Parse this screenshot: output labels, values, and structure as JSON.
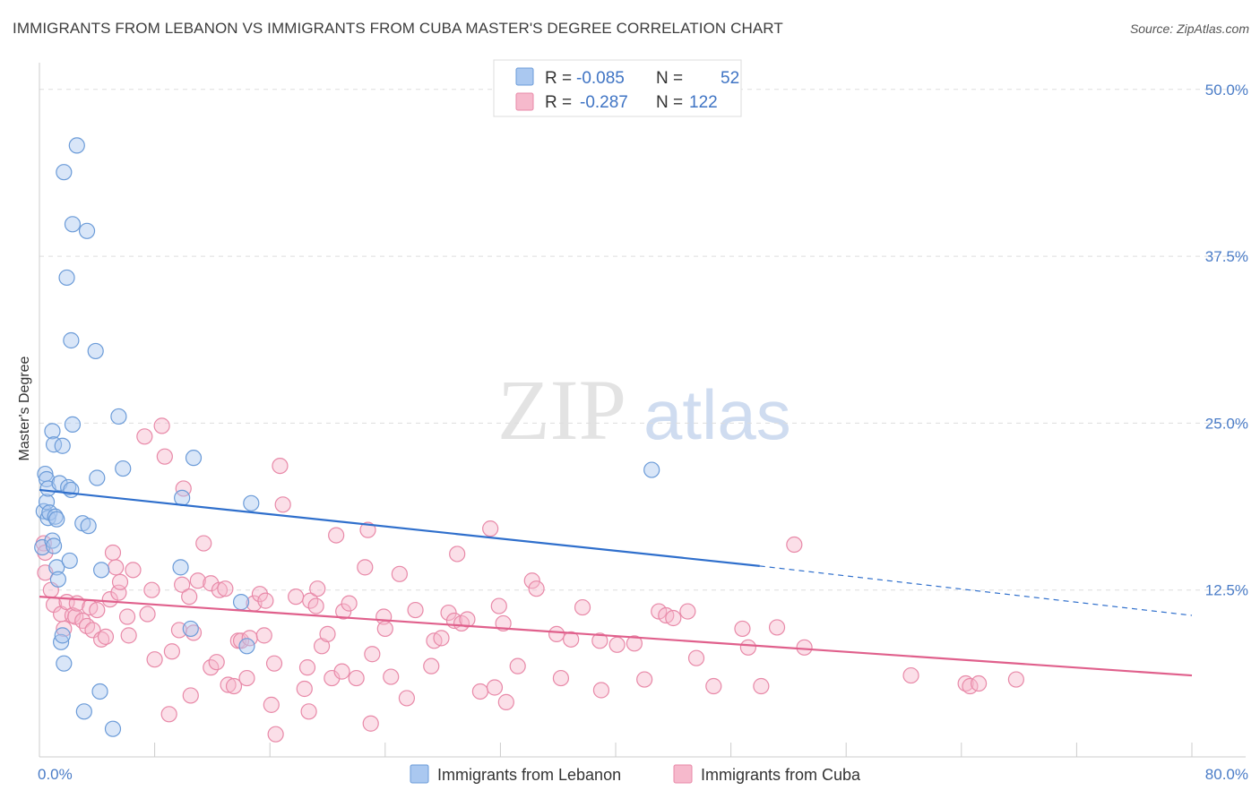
{
  "header": {
    "title": "IMMIGRANTS FROM LEBANON VS IMMIGRANTS FROM CUBA MASTER'S DEGREE CORRELATION CHART",
    "source_label": "Source: ZipAtlas.com"
  },
  "watermark": {
    "zip": "ZIP",
    "atlas": "atlas"
  },
  "legend": {
    "r_label": "R =",
    "n_label": "N =",
    "rows": [
      {
        "series": "Immigrants from Lebanon",
        "r": "-0.085",
        "n": "52"
      },
      {
        "series": "Immigrants from Cuba",
        "r": "-0.287",
        "n": "122"
      }
    ]
  },
  "colors": {
    "lebanon_fill": "#aac8f0",
    "lebanon_stroke": "#6b9bd8",
    "lebanon_line": "#2f6fcc",
    "cuba_fill": "#f6b9cc",
    "cuba_stroke": "#e889a8",
    "cuba_line": "#e0608c",
    "grid": "#dddddd",
    "tick_text": "#4a7cc7"
  },
  "chart_data": {
    "type": "scatter",
    "title": "IMMIGRANTS FROM LEBANON VS IMMIGRANTS FROM CUBA MASTER'S DEGREE CORRELATION CHART",
    "xlabel": "",
    "ylabel": "Master's Degree",
    "xlim": [
      0,
      80
    ],
    "ylim": [
      0,
      52
    ],
    "x_tick_labels": [
      {
        "value": 0,
        "label": "0.0%"
      },
      {
        "value": 80,
        "label": "80.0%"
      }
    ],
    "y_tick_labels": [
      {
        "value": 12.5,
        "label": "12.5%"
      },
      {
        "value": 25,
        "label": "25.0%"
      },
      {
        "value": 37.5,
        "label": "37.5%"
      },
      {
        "value": 50,
        "label": "50.0%"
      }
    ],
    "series": [
      {
        "name": "Immigrants from Lebanon",
        "points": [
          [
            0.2,
            15.7
          ],
          [
            0.3,
            18.4
          ],
          [
            0.4,
            21.2
          ],
          [
            0.5,
            20.8
          ],
          [
            0.5,
            19.1
          ],
          [
            0.6,
            20.1
          ],
          [
            0.6,
            17.9
          ],
          [
            0.7,
            18.3
          ],
          [
            0.9,
            16.2
          ],
          [
            0.9,
            24.4
          ],
          [
            1.0,
            15.8
          ],
          [
            1.0,
            23.4
          ],
          [
            1.1,
            18.0
          ],
          [
            1.2,
            17.8
          ],
          [
            1.2,
            14.2
          ],
          [
            1.3,
            13.3
          ],
          [
            1.4,
            20.5
          ],
          [
            1.5,
            8.6
          ],
          [
            1.6,
            23.3
          ],
          [
            1.6,
            9.1
          ],
          [
            1.7,
            7.0
          ],
          [
            1.7,
            43.8
          ],
          [
            1.9,
            35.9
          ],
          [
            2.0,
            20.2
          ],
          [
            2.1,
            14.7
          ],
          [
            2.2,
            20.0
          ],
          [
            2.2,
            31.2
          ],
          [
            2.3,
            24.9
          ],
          [
            2.3,
            39.9
          ],
          [
            2.6,
            45.8
          ],
          [
            3.0,
            17.5
          ],
          [
            3.1,
            3.4
          ],
          [
            3.3,
            39.4
          ],
          [
            3.4,
            17.3
          ],
          [
            3.9,
            30.4
          ],
          [
            4.0,
            20.9
          ],
          [
            4.2,
            4.9
          ],
          [
            4.3,
            14.0
          ],
          [
            5.1,
            2.1
          ],
          [
            5.5,
            25.5
          ],
          [
            5.8,
            21.6
          ],
          [
            9.8,
            14.2
          ],
          [
            9.9,
            19.4
          ],
          [
            10.5,
            9.6
          ],
          [
            10.7,
            22.4
          ],
          [
            14.0,
            11.6
          ],
          [
            14.4,
            8.3
          ],
          [
            14.7,
            19.0
          ],
          [
            42.5,
            21.5
          ]
        ]
      },
      {
        "name": "Immigrants from Cuba",
        "points": [
          [
            0.3,
            16.0
          ],
          [
            0.4,
            15.3
          ],
          [
            0.4,
            13.8
          ],
          [
            0.8,
            12.5
          ],
          [
            1.0,
            11.4
          ],
          [
            1.5,
            10.7
          ],
          [
            1.7,
            9.6
          ],
          [
            1.9,
            11.6
          ],
          [
            2.3,
            10.6
          ],
          [
            2.5,
            10.5
          ],
          [
            2.6,
            11.5
          ],
          [
            3.0,
            10.2
          ],
          [
            3.3,
            9.8
          ],
          [
            3.5,
            11.2
          ],
          [
            3.7,
            9.5
          ],
          [
            4.0,
            11.0
          ],
          [
            4.3,
            8.8
          ],
          [
            4.6,
            9.0
          ],
          [
            4.9,
            11.8
          ],
          [
            5.1,
            15.3
          ],
          [
            5.3,
            14.2
          ],
          [
            5.5,
            12.3
          ],
          [
            5.6,
            13.1
          ],
          [
            6.1,
            10.5
          ],
          [
            6.2,
            9.1
          ],
          [
            6.5,
            14.0
          ],
          [
            7.3,
            24.0
          ],
          [
            7.5,
            10.7
          ],
          [
            7.8,
            12.5
          ],
          [
            8.0,
            7.3
          ],
          [
            8.5,
            24.8
          ],
          [
            8.7,
            22.5
          ],
          [
            9.0,
            3.2
          ],
          [
            9.2,
            7.9
          ],
          [
            9.7,
            9.5
          ],
          [
            9.9,
            12.9
          ],
          [
            10.0,
            20.1
          ],
          [
            10.4,
            12.0
          ],
          [
            10.5,
            4.6
          ],
          [
            10.7,
            9.3
          ],
          [
            11.0,
            13.2
          ],
          [
            11.4,
            16.0
          ],
          [
            11.9,
            6.7
          ],
          [
            11.9,
            13.0
          ],
          [
            12.3,
            7.1
          ],
          [
            12.5,
            12.5
          ],
          [
            12.9,
            12.6
          ],
          [
            13.1,
            5.4
          ],
          [
            13.5,
            5.3
          ],
          [
            13.8,
            8.7
          ],
          [
            14.0,
            8.7
          ],
          [
            14.4,
            5.9
          ],
          [
            14.6,
            8.9
          ],
          [
            14.9,
            11.5
          ],
          [
            15.3,
            12.2
          ],
          [
            15.6,
            9.1
          ],
          [
            15.7,
            11.7
          ],
          [
            16.1,
            3.9
          ],
          [
            16.3,
            7.0
          ],
          [
            16.4,
            1.7
          ],
          [
            16.7,
            21.8
          ],
          [
            16.9,
            18.9
          ],
          [
            17.8,
            12.0
          ],
          [
            18.4,
            5.1
          ],
          [
            18.6,
            6.7
          ],
          [
            18.7,
            3.4
          ],
          [
            18.8,
            11.7
          ],
          [
            19.2,
            11.3
          ],
          [
            19.3,
            12.6
          ],
          [
            19.6,
            8.3
          ],
          [
            20.0,
            9.2
          ],
          [
            20.3,
            5.9
          ],
          [
            20.6,
            16.6
          ],
          [
            21.0,
            6.4
          ],
          [
            21.1,
            10.9
          ],
          [
            21.5,
            11.5
          ],
          [
            22.0,
            5.9
          ],
          [
            22.6,
            14.2
          ],
          [
            22.8,
            17.0
          ],
          [
            23.0,
            2.5
          ],
          [
            23.1,
            7.7
          ],
          [
            23.9,
            10.5
          ],
          [
            24.0,
            9.6
          ],
          [
            24.4,
            6.0
          ],
          [
            25.0,
            13.7
          ],
          [
            25.5,
            4.4
          ],
          [
            26.1,
            11.0
          ],
          [
            27.2,
            6.8
          ],
          [
            27.4,
            8.7
          ],
          [
            27.9,
            8.9
          ],
          [
            28.4,
            10.8
          ],
          [
            28.8,
            10.2
          ],
          [
            29.0,
            15.2
          ],
          [
            29.3,
            10.0
          ],
          [
            29.7,
            10.3
          ],
          [
            30.6,
            4.9
          ],
          [
            31.3,
            17.1
          ],
          [
            31.6,
            5.2
          ],
          [
            31.9,
            11.3
          ],
          [
            32.2,
            10.0
          ],
          [
            32.4,
            4.1
          ],
          [
            33.2,
            6.8
          ],
          [
            34.2,
            13.2
          ],
          [
            34.5,
            12.6
          ],
          [
            35.9,
            9.2
          ],
          [
            36.2,
            5.9
          ],
          [
            36.9,
            8.8
          ],
          [
            37.7,
            11.2
          ],
          [
            38.9,
            8.7
          ],
          [
            39.0,
            5.0
          ],
          [
            40.1,
            8.4
          ],
          [
            41.3,
            8.5
          ],
          [
            42.0,
            5.8
          ],
          [
            43.0,
            10.9
          ],
          [
            43.5,
            10.6
          ],
          [
            44.0,
            10.4
          ],
          [
            45.0,
            10.9
          ],
          [
            45.6,
            7.4
          ],
          [
            46.8,
            5.3
          ],
          [
            48.8,
            9.6
          ],
          [
            49.2,
            8.2
          ],
          [
            50.1,
            5.3
          ],
          [
            51.2,
            9.7
          ],
          [
            52.4,
            15.9
          ],
          [
            53.1,
            8.2
          ],
          [
            60.5,
            6.1
          ],
          [
            64.3,
            5.5
          ],
          [
            64.6,
            5.3
          ],
          [
            65.2,
            5.5
          ],
          [
            67.8,
            5.8
          ]
        ]
      }
    ],
    "trendlines": [
      {
        "series": "Immigrants from Lebanon",
        "x0": 0,
        "y0": 20.0,
        "x1": 50,
        "y1": 14.3,
        "dashed_to_x": 80,
        "dashed_to_y": 10.6
      },
      {
        "series": "Immigrants from Cuba",
        "x0": 0,
        "y0": 12.0,
        "x1": 80,
        "y1": 6.1
      }
    ]
  }
}
